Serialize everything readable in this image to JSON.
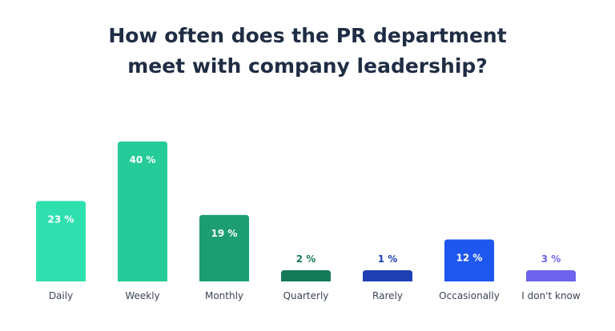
{
  "chart_data": {
    "type": "bar",
    "title_lines": [
      "How often does the PR department",
      "meet with company leadership?"
    ],
    "xlabel": "",
    "ylabel": "",
    "ylim": [
      0,
      40
    ],
    "grid": false,
    "legend": "none",
    "categories": [
      "Daily",
      "Weekly",
      "Monthly",
      "Quarterly",
      "Rarely",
      "Occasionally",
      "I don't know"
    ],
    "values": [
      23,
      40,
      19,
      2,
      1,
      12,
      3
    ],
    "value_labels": [
      "23 %",
      "40 %",
      "19 %",
      "2 %",
      "1 %",
      "12 %",
      "3 %"
    ],
    "colors": [
      "#2ee0ad",
      "#25cb98",
      "#1c9e72",
      "#157a58",
      "#1d3fb3",
      "#1e56f0",
      "#6d63ec"
    ],
    "label_colors": [
      "#ffffff",
      "#ffffff",
      "#ffffff",
      "#157a58",
      "#1d3fb3",
      "#ffffff",
      "#6d63ec"
    ]
  }
}
